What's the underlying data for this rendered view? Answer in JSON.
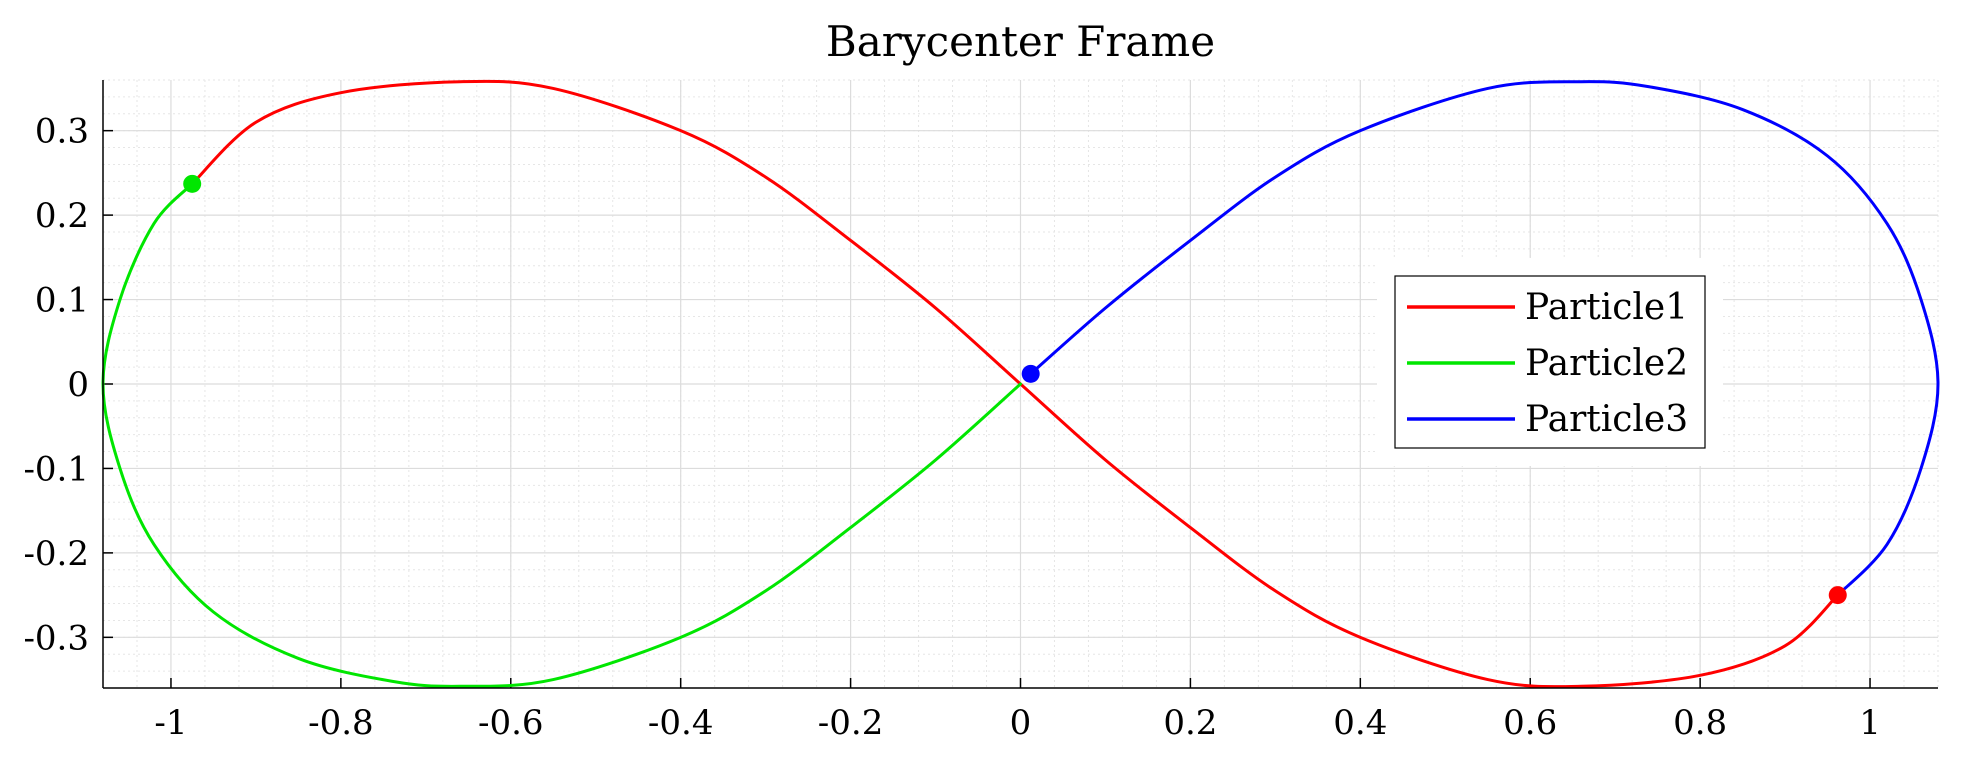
{
  "chart_data": {
    "type": "line",
    "title": "Barycenter Frame",
    "xlabel": "",
    "ylabel": "",
    "xlim": [
      -1.08,
      1.08
    ],
    "ylim": [
      -0.36,
      0.36
    ],
    "x_ticks": [
      -1,
      -0.8,
      -0.6,
      -0.4,
      -0.2,
      0,
      0.2,
      0.4,
      0.6,
      0.8,
      1
    ],
    "x_tick_labels": [
      "-1",
      "-0.8",
      "-0.6",
      "-0.4",
      "-0.2",
      "0",
      "0.2",
      "0.4",
      "0.6",
      "0.8",
      "1"
    ],
    "y_ticks": [
      0.3,
      0.2,
      0.1,
      0,
      -0.1,
      -0.2,
      -0.3
    ],
    "y_tick_labels": [
      "0.3",
      "0.2",
      "0.1",
      "0",
      "-0.1",
      "-0.2",
      "-0.3"
    ],
    "grid": "on (major and minor)",
    "legend_placement": "right",
    "orbit": "figure-eight",
    "series": [
      {
        "name": "Particle1",
        "color": "#ff0000",
        "path": [
          [
            0.962,
            -0.25
          ],
          [
            0.9,
            -0.31
          ],
          [
            0.8,
            -0.345
          ],
          [
            0.66,
            -0.358
          ],
          [
            0.55,
            -0.35
          ],
          [
            0.4,
            -0.3
          ],
          [
            0.3,
            -0.245
          ],
          [
            0.2,
            -0.17
          ],
          [
            0.1,
            -0.09
          ],
          [
            0,
            0
          ],
          [
            -0.1,
            0.09
          ],
          [
            -0.2,
            0.17
          ],
          [
            -0.3,
            0.245
          ],
          [
            -0.4,
            0.3
          ],
          [
            -0.55,
            0.35
          ],
          [
            -0.66,
            0.358
          ],
          [
            -0.8,
            0.345
          ],
          [
            -0.9,
            0.31
          ],
          [
            -0.975,
            0.237
          ]
        ],
        "marker": [
          0.962,
          -0.25
        ]
      },
      {
        "name": "Particle2",
        "color": "#00e600",
        "path": [
          [
            -0.975,
            0.237
          ],
          [
            -1.02,
            0.19
          ],
          [
            -1.06,
            0.1
          ],
          [
            -1.08,
            0
          ],
          [
            -1.06,
            -0.1
          ],
          [
            -1.02,
            -0.19
          ],
          [
            -0.95,
            -0.27
          ],
          [
            -0.85,
            -0.325
          ],
          [
            -0.74,
            -0.352
          ],
          [
            -0.66,
            -0.358
          ],
          [
            -0.55,
            -0.35
          ],
          [
            -0.4,
            -0.3
          ],
          [
            -0.3,
            -0.245
          ],
          [
            -0.2,
            -0.17
          ],
          [
            -0.1,
            -0.09
          ],
          [
            0,
            0
          ]
        ],
        "marker": [
          -0.975,
          0.237
        ]
      },
      {
        "name": "Particle3",
        "color": "#0000ff",
        "path": [
          [
            0.012,
            0.012
          ],
          [
            0.1,
            0.09
          ],
          [
            0.2,
            0.17
          ],
          [
            0.3,
            0.245
          ],
          [
            0.4,
            0.3
          ],
          [
            0.55,
            0.35
          ],
          [
            0.66,
            0.358
          ],
          [
            0.74,
            0.352
          ],
          [
            0.85,
            0.325
          ],
          [
            0.95,
            0.27
          ],
          [
            1.02,
            0.19
          ],
          [
            1.06,
            0.1
          ],
          [
            1.08,
            0
          ],
          [
            1.06,
            -0.1
          ],
          [
            1.02,
            -0.19
          ],
          [
            0.962,
            -0.25
          ]
        ],
        "marker": [
          0.012,
          0.012
        ]
      }
    ]
  }
}
